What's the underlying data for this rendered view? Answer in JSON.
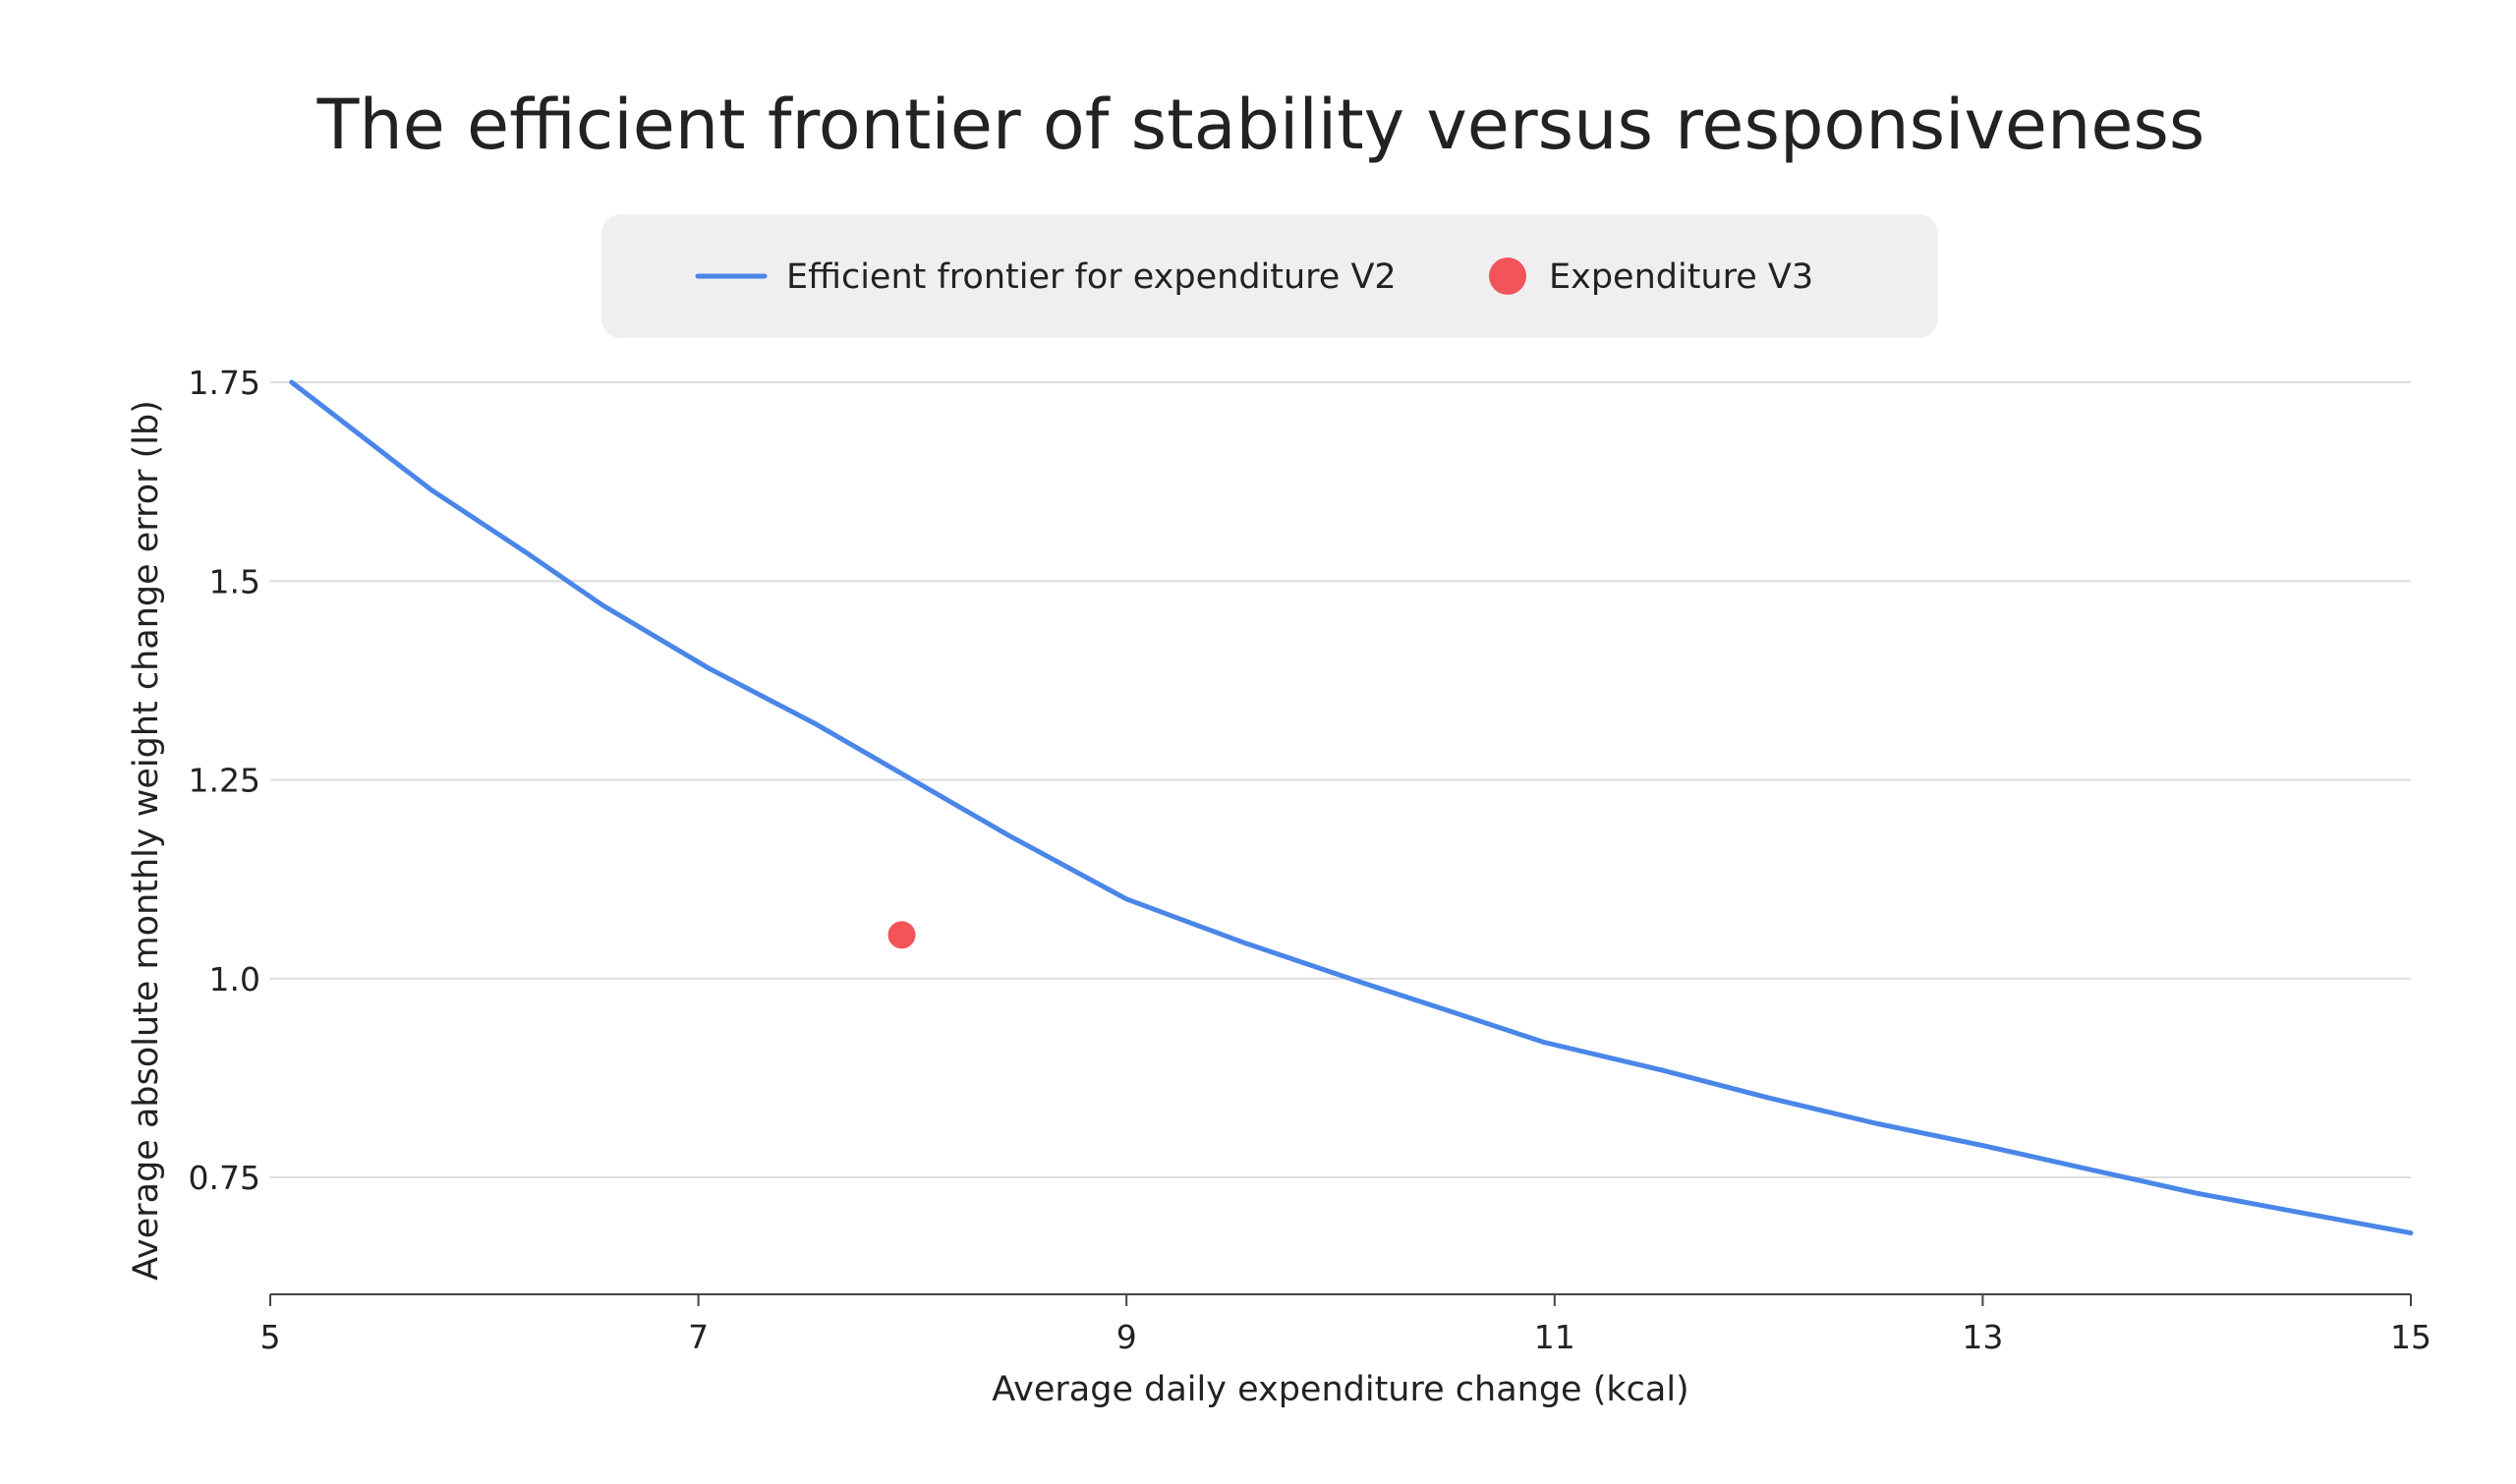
{
  "chart_data": {
    "type": "line",
    "title": "The efficient frontier of stability versus responsiveness",
    "xlabel": "Average daily expenditure change (kcal)",
    "ylabel": "Average absolute monthly weight change error (lb)",
    "xlim": [
      5,
      15
    ],
    "ylim": [
      0.6,
      1.75
    ],
    "x_ticks": [
      "5",
      "7",
      "9",
      "11",
      "13",
      "15"
    ],
    "y_ticks": [
      "0.75",
      "1.0",
      "1.25",
      "1.5",
      "1.75"
    ],
    "grid": "horizontal",
    "legend_position": "top-center",
    "series": [
      {
        "name": "Efficient frontier for expenditure V2",
        "kind": "line",
        "color": "#4a86e8",
        "x": [
          5.1,
          5.75,
          6.2,
          6.55,
          7.05,
          7.55,
          8.0,
          8.45,
          9.0,
          9.55,
          10.1,
          10.5,
          10.95,
          11.5,
          12.0,
          12.5,
          13.0,
          13.5,
          14.0,
          14.5,
          15.0
        ],
        "y": [
          1.75,
          1.615,
          1.535,
          1.47,
          1.39,
          1.32,
          1.25,
          1.18,
          1.1,
          1.045,
          0.995,
          0.96,
          0.92,
          0.885,
          0.85,
          0.818,
          0.79,
          0.76,
          0.73,
          0.705,
          0.68
        ]
      },
      {
        "name": "Expenditure V3",
        "kind": "scatter",
        "color": "#f25459",
        "x": [
          7.95
        ],
        "y": [
          1.055
        ]
      }
    ]
  }
}
